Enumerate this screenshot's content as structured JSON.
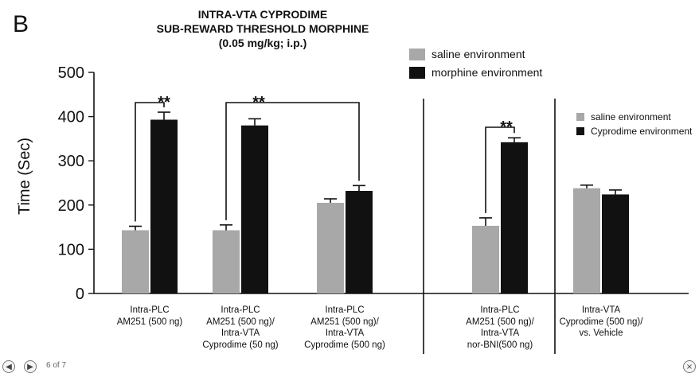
{
  "panel_letter": "B",
  "title_lines": [
    "INTRA-VTA CYPRODIME",
    "SUB-REWARD THRESHOLD MORPHINE",
    "(0.05 mg/kg; i.p.)"
  ],
  "legend_main": [
    {
      "label": "saline environment",
      "color": "#a8a8a8"
    },
    {
      "label": "morphine environment",
      "color": "#111111"
    }
  ],
  "legend_secondary": [
    {
      "label": "saline environment",
      "color": "#a8a8a8"
    },
    {
      "label": "Cyprodime environment",
      "color": "#111111"
    }
  ],
  "viewer": {
    "prev_icon": "◀",
    "next_icon": "▶",
    "page_counter": "6 of 7",
    "close_icon": "×"
  },
  "chart_data": {
    "type": "bar",
    "ylabel": "Time (Sec)",
    "ylim": [
      0,
      500
    ],
    "yticks": [
      0,
      100,
      200,
      300,
      400,
      500
    ],
    "grid": false,
    "categories": [
      [
        "Intra-PLC",
        "AM251  (500 ng)"
      ],
      [
        "Intra-PLC",
        "AM251 (500 ng)/",
        "Intra-VTA",
        "Cyprodime (50 ng)"
      ],
      [
        "Intra-PLC",
        "AM251 (500 ng)/",
        "Intra-VTA",
        "Cyprodime (500 ng)"
      ],
      [
        "Intra-PLC",
        "AM251 (500 ng)/",
        "Intra-VTA",
        "nor-BNI(500 ng)"
      ],
      [
        "Intra-VTA",
        "Cyprodime (500 ng)/",
        "vs. Vehicle"
      ]
    ],
    "series": [
      {
        "name": "saline environment",
        "color": "#a8a8a8",
        "values": [
          143,
          143,
          205,
          153,
          238
        ],
        "errors": [
          9,
          12,
          9,
          18,
          7
        ]
      },
      {
        "name": "morphine environment",
        "color": "#111111",
        "values": [
          393,
          380,
          232,
          342,
          224
        ],
        "errors": [
          17,
          15,
          12,
          10,
          10
        ]
      }
    ],
    "significance": [
      {
        "label": "**"
      },
      {
        "label": "**"
      },
      {
        "label": "**"
      }
    ]
  }
}
